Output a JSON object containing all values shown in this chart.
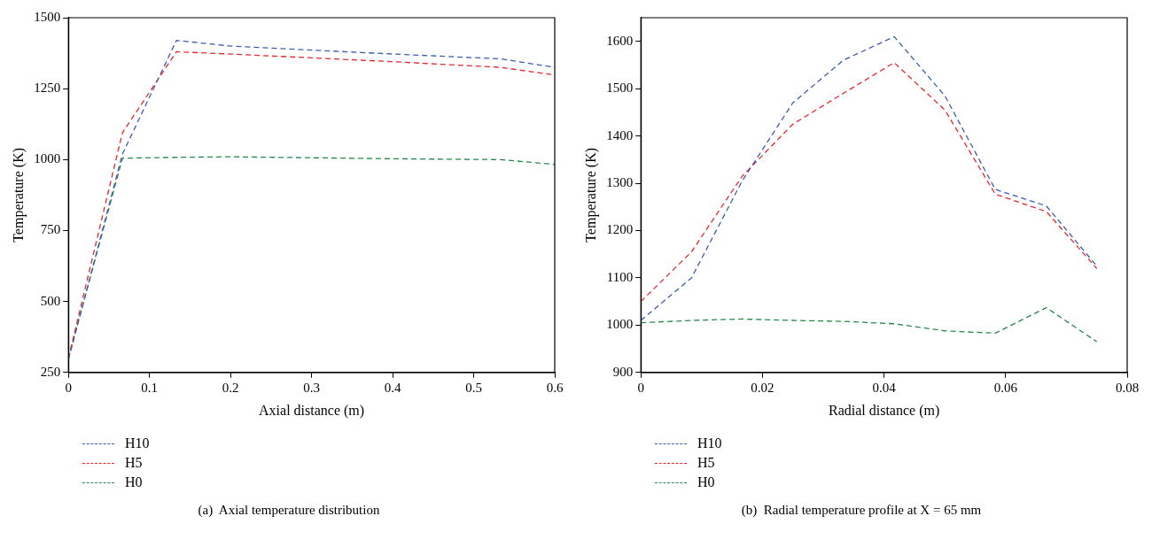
{
  "chart_data": [
    {
      "type": "line",
      "xlabel": "Axial distance (m)",
      "ylabel": "Temperature (K)",
      "annotations": [
        "(a)  Axial temperature distribution"
      ],
      "x": [
        0,
        0.0667,
        0.1333,
        0.2,
        0.4,
        0.5333,
        0.6
      ],
      "series": [
        {
          "name": "H10",
          "color": "#3b5bb5",
          "values": [
            295,
            1020,
            1420,
            1400,
            1372,
            1355,
            1325
          ]
        },
        {
          "name": "H5",
          "color": "#e8262b",
          "values": [
            300,
            1095,
            1380,
            1372,
            1345,
            1325,
            1298
          ]
        },
        {
          "name": "H0",
          "color": "#23894a",
          "values": [
            300,
            1005,
            1008,
            1010,
            1003,
            1000,
            983
          ]
        }
      ],
      "xlim": [
        0,
        0.6
      ],
      "xticks": [
        0,
        0.1,
        0.2,
        0.3,
        0.4,
        0.5,
        0.6
      ],
      "ylim": [
        250,
        1500
      ],
      "yticks": [
        250,
        500,
        750,
        1000,
        1250,
        1500
      ],
      "grid": false,
      "legend": "bottom left",
      "marker": "none",
      "line_style": "dashed"
    },
    {
      "type": "line",
      "xlabel": "Radial distance (m)",
      "ylabel": "Temperature (K)",
      "annotations": [
        "(b)  Radial temperature profile at X = 65 mm"
      ],
      "x": [
        0,
        0.00833,
        0.01667,
        0.025,
        0.0333,
        0.04167,
        0.05,
        0.0583,
        0.0667,
        0.075
      ],
      "series": [
        {
          "name": "H10",
          "color": "#3b5bb5",
          "values": [
            1010,
            1100,
            1305,
            1470,
            1560,
            1610,
            1485,
            1287,
            1252,
            1125
          ]
        },
        {
          "name": "H5",
          "color": "#e8262b",
          "values": [
            1050,
            1155,
            1315,
            1425,
            1490,
            1555,
            1455,
            1277,
            1240,
            1120
          ]
        },
        {
          "name": "H0",
          "color": "#23894a",
          "values": [
            1005,
            1010,
            1013,
            1010,
            1008,
            1003,
            988,
            983,
            1037,
            965
          ]
        }
      ],
      "xlim": [
        0,
        0.08
      ],
      "xticks": [
        0,
        0.02,
        0.04,
        0.06,
        0.08
      ],
      "ylim": [
        900,
        1650
      ],
      "yticks": [
        900,
        1000,
        1100,
        1200,
        1300,
        1400,
        1500,
        1600
      ],
      "grid": false,
      "legend": "bottom left",
      "marker": "none",
      "line_style": "dashed"
    }
  ]
}
